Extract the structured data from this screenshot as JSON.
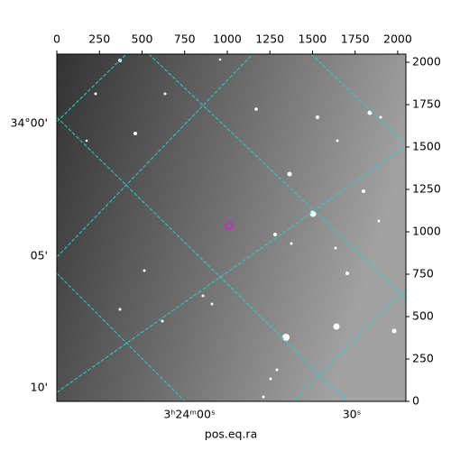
{
  "chart_data": {
    "type": "image",
    "xlim": [
      0,
      2048
    ],
    "xticks": [
      0,
      250,
      500,
      750,
      1000,
      1250,
      1500,
      1750,
      2000
    ],
    "ylim": [
      0,
      2048
    ],
    "yticks": [
      0,
      250,
      500,
      750,
      1000,
      1250,
      1500,
      1750,
      2000
    ],
    "ra_ticks": [
      "3ʰ24ᵐ00ˢ",
      "30ˢ"
    ],
    "dec_ticks": [
      "34°00'",
      "05'",
      "10'"
    ],
    "xlabel": "pos.eq.ra",
    "grid_color": "#22d3d3"
  }
}
